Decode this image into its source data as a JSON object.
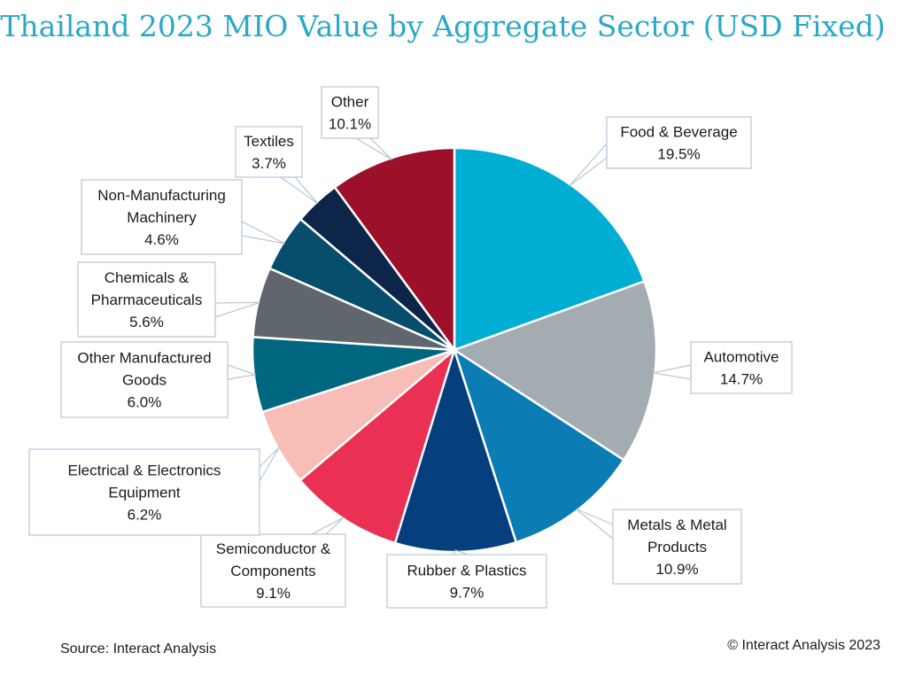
{
  "chart_data": {
    "type": "pie",
    "title": "Thailand 2023 MIO Value by Aggregate Sector (USD Fixed)",
    "slices": [
      {
        "label": "Food & Beverage",
        "value": 19.5,
        "display": "19.5%",
        "color": "#00aed3"
      },
      {
        "label": "Automotive",
        "value": 14.7,
        "display": "14.7%",
        "color": "#a2acb1"
      },
      {
        "label": "Metals & Metal Products",
        "value": 10.9,
        "display": "10.9%",
        "color": "#0b7db4"
      },
      {
        "label": "Rubber & Plastics",
        "value": 9.7,
        "display": "9.7%",
        "color": "#053f7e"
      },
      {
        "label": "Semiconductor & Components",
        "value": 9.1,
        "display": "9.1%",
        "color": "#ea3153"
      },
      {
        "label": "Electrical & Electronics Equipment",
        "value": 6.2,
        "display": "6.2%",
        "color": "#f7bdb6"
      },
      {
        "label": "Other Manufactured Goods",
        "value": 6.0,
        "display": "6.0%",
        "color": "#016780"
      },
      {
        "label": "Chemicals & Pharmaceuticals",
        "value": 5.6,
        "display": "5.6%",
        "color": "#5f666d"
      },
      {
        "label": "Non-Manufacturing Machinery",
        "value": 4.6,
        "display": "4.6%",
        "color": "#064e6c"
      },
      {
        "label": "Textiles",
        "value": 3.7,
        "display": "3.7%",
        "color": "#0c2548"
      },
      {
        "label": "Other",
        "value": 10.1,
        "display": "10.1%",
        "color": "#9c1029"
      }
    ]
  },
  "footer": {
    "source": "Source: Interact Analysis",
    "copyright": "© Interact Analysis 2023"
  }
}
